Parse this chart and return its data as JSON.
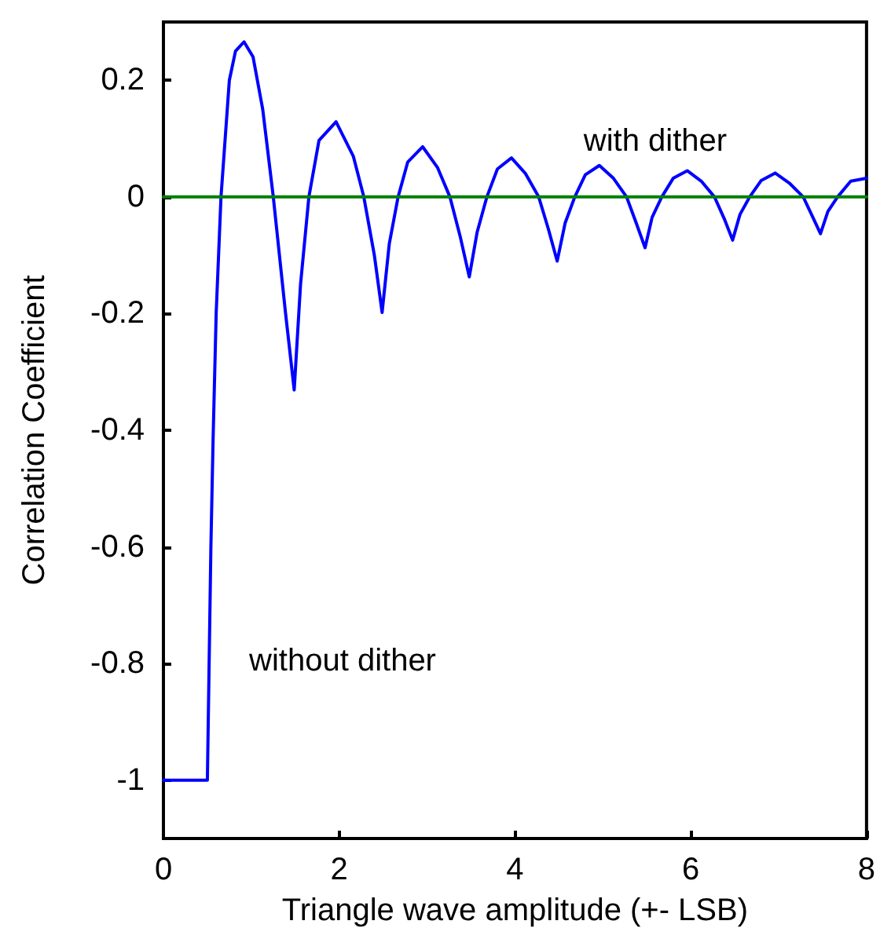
{
  "chart_data": {
    "type": "line",
    "xlabel": "Triangle wave amplitude (+- LSB)",
    "ylabel": "Correlation Coefficient",
    "xlim": [
      0,
      8
    ],
    "xticks": [
      0,
      2,
      4,
      6,
      8
    ],
    "ylim": [
      -1.1,
      0.3
    ],
    "yticks": [
      -1,
      -0.8,
      -0.6,
      -0.4,
      -0.2,
      0,
      0.2
    ],
    "grid": false,
    "marker": "none",
    "line_style": "solid",
    "series": [
      {
        "color": "#0000ff",
        "x": [
          0,
          0.5,
          0.52,
          0.54,
          0.565,
          0.6,
          0.655,
          0.75,
          0.82,
          0.917,
          1.02,
          1.13,
          1.25,
          1.39,
          1.488,
          1.56,
          1.655,
          1.77,
          1.964,
          2.16,
          2.28,
          2.4,
          2.488,
          2.57,
          2.67,
          2.78,
          2.95,
          3.12,
          3.26,
          3.38,
          3.48,
          3.57,
          3.68,
          3.8,
          3.96,
          4.12,
          4.27,
          4.38,
          4.48,
          4.57,
          4.68,
          4.8,
          4.96,
          5.12,
          5.27,
          5.38,
          5.48,
          5.56,
          5.67,
          5.8,
          5.96,
          6.12,
          6.27,
          6.38,
          6.476,
          6.56,
          6.67,
          6.8,
          6.96,
          7.12,
          7.28,
          7.38,
          7.476,
          7.56,
          7.67,
          7.82,
          8.0
        ],
        "values": [
          -1,
          -1,
          -0.8,
          -0.6,
          -0.416,
          -0.2,
          0,
          0.2,
          0.25,
          0.266,
          0.24,
          0.15,
          0,
          -0.2,
          -0.331,
          -0.15,
          0,
          0.097,
          0.129,
          0.07,
          0,
          -0.1,
          -0.198,
          -0.08,
          0,
          0.06,
          0.086,
          0.05,
          0,
          -0.07,
          -0.137,
          -0.06,
          0,
          0.048,
          0.067,
          0.04,
          0,
          -0.055,
          -0.11,
          -0.045,
          0,
          0.038,
          0.054,
          0.032,
          0,
          -0.045,
          -0.087,
          -0.035,
          0,
          0.032,
          0.045,
          0.027,
          0,
          -0.037,
          -0.074,
          -0.03,
          0,
          0.028,
          0.041,
          0.024,
          0,
          -0.032,
          -0.063,
          -0.025,
          0,
          0.027,
          0.032
        ]
      },
      {
        "color": "#008000",
        "x": [
          0,
          8
        ],
        "values": [
          0,
          0
        ]
      }
    ],
    "annotations": [
      "with dither",
      "without dither"
    ]
  }
}
